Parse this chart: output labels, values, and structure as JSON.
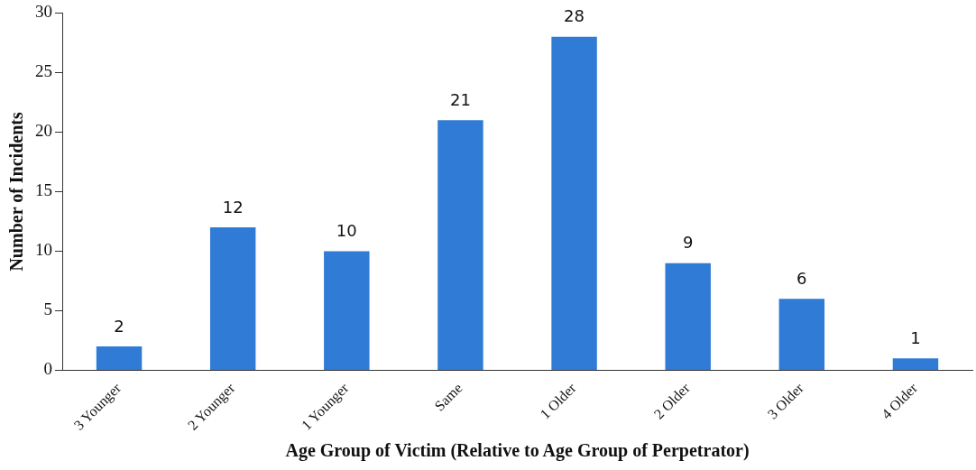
{
  "chart_data": {
    "type": "bar",
    "xlabel": "Age Group of Victim (Relative to Age Group of Perpetrator)",
    "ylabel": "Number of Incidents",
    "categories": [
      "3 Younger",
      "2 Younger",
      "1 Younger",
      "Same",
      "1 Older",
      "2 Older",
      "3 Older",
      "4 Older"
    ],
    "values": [
      2,
      12,
      10,
      21,
      28,
      9,
      6,
      1
    ],
    "color": "#2f7bd6",
    "ylim": [
      0,
      30
    ],
    "yticks": [
      0,
      5,
      10,
      15,
      20,
      25,
      30
    ],
    "data_labels": true,
    "grid": false,
    "legend": false
  }
}
